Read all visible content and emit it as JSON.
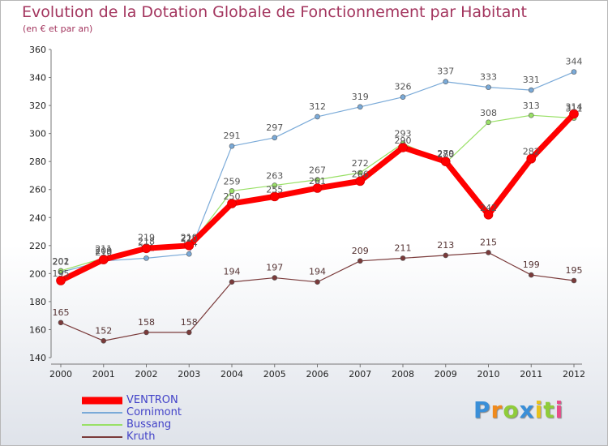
{
  "chart_data": {
    "type": "line",
    "title": "Evolution de la Dotation Globale de Fonctionnement par Habitant",
    "subtitle": "(en € et par an)",
    "xlabel": "",
    "ylabel": "",
    "x": [
      "2000",
      "2001",
      "2002",
      "2003",
      "2004",
      "2005",
      "2006",
      "2007",
      "2008",
      "2009",
      "2010",
      "2011",
      "2012"
    ],
    "ylim": [
      140,
      360
    ],
    "yticks": [
      "140",
      "160",
      "180",
      "200",
      "220",
      "240",
      "260",
      "280",
      "300",
      "320",
      "340",
      "360"
    ],
    "grid": false,
    "legend_position": "bottom-left",
    "series": [
      {
        "name": "VENTRON",
        "color": "#ff0000",
        "values": [
          195,
          210,
          218,
          220,
          250,
          255,
          261,
          266,
          290,
          280,
          242,
          282,
          314
        ]
      },
      {
        "name": "Cornimont",
        "color": "#7aaad8",
        "values": [
          201,
          209,
          211,
          214,
          291,
          297,
          312,
          319,
          326,
          337,
          333,
          331,
          344
        ]
      },
      {
        "name": "Bussang",
        "color": "#99e066",
        "values": [
          202,
          211,
          219,
          219,
          259,
          263,
          267,
          272,
          293,
          279,
          308,
          313,
          311
        ]
      },
      {
        "name": "Kruth",
        "color": "#7a3a3a",
        "values": [
          165,
          152,
          158,
          158,
          194,
          197,
          194,
          209,
          211,
          213,
          215,
          199,
          195
        ]
      }
    ]
  },
  "brand": {
    "letters": [
      "P",
      "r",
      "o",
      "x",
      "i",
      "t",
      "i"
    ],
    "colors": [
      "#3a8fd8",
      "#f08a1c",
      "#8fcc3a",
      "#3a8fd8",
      "#e8c21c",
      "#8fcc3a",
      "#e84c8a"
    ]
  }
}
